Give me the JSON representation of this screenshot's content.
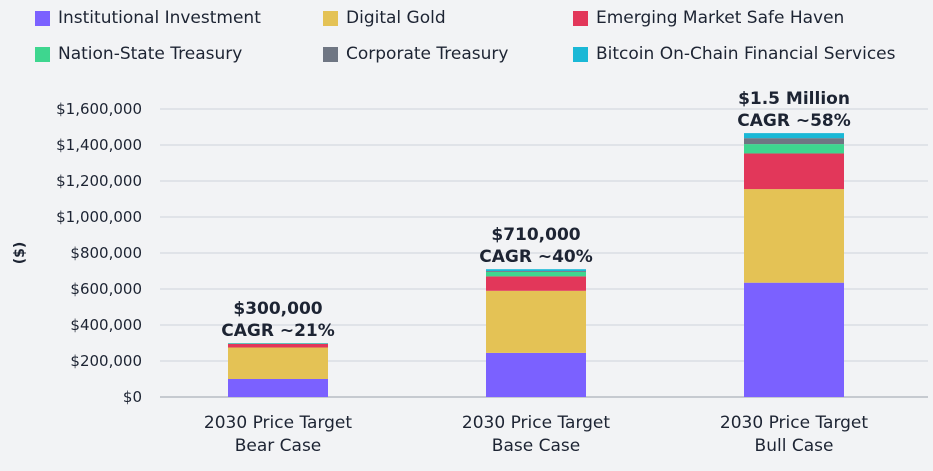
{
  "chart_data": {
    "type": "bar",
    "stacked": true,
    "title": "",
    "xlabel": "",
    "ylabel": "($)",
    "ylim": [
      0,
      1600000
    ],
    "yticks": [
      0,
      200000,
      400000,
      600000,
      800000,
      1000000,
      1200000,
      1400000,
      1600000
    ],
    "ytick_labels": [
      "$0",
      "$200,000",
      "$400,000",
      "$600,000",
      "$800,000",
      "$1,000,000",
      "$1,200,000",
      "$1,400,000",
      "$1,600,000"
    ],
    "grid": true,
    "legend_position": "top",
    "categories": [
      [
        "2030 Price Target",
        "Bear Case"
      ],
      [
        "2030 Price Target",
        "Base Case"
      ],
      [
        "2030 Price Target",
        "Bull Case"
      ]
    ],
    "series": [
      {
        "name": "Institutional Investment",
        "color": "#7b61ff",
        "values": [
          100000,
          245000,
          635000
        ]
      },
      {
        "name": "Digital Gold",
        "color": "#e4c255",
        "values": [
          175000,
          345000,
          520000
        ]
      },
      {
        "name": "Emerging Market Safe Haven",
        "color": "#e2375a",
        "values": [
          20000,
          80000,
          198000
        ]
      },
      {
        "name": "Nation-State Treasury",
        "color": "#3ed68f",
        "values": [
          2000,
          25000,
          52000
        ]
      },
      {
        "name": "Corporate Treasury",
        "color": "#6f7683",
        "values": [
          1000,
          5000,
          33000
        ]
      },
      {
        "name": "Bitcoin On-Chain Financial Services",
        "color": "#1ab8d6",
        "values": [
          2000,
          10000,
          28000
        ]
      }
    ],
    "annotations": [
      {
        "line1": "$300,000",
        "line2": "CAGR ~21%"
      },
      {
        "line1": "$710,000",
        "line2": "CAGR ~40%"
      },
      {
        "line1": "$1.5 Million",
        "line2": "CAGR ~58%"
      }
    ]
  }
}
